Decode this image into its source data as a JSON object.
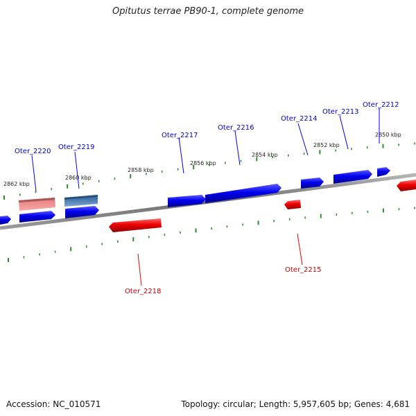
{
  "title": "Opitutus terrae PB90-1, complete genome",
  "footer": {
    "accession": "Accession: NC_010571",
    "summary": "Topology: circular; Length: 5,957,605 bp; Genes: 4,681"
  },
  "colors": {
    "forward_gene": "#0000ee",
    "reverse_gene": "#ee0000",
    "highlight_pink": "#ee8a8a",
    "highlight_steel": "#4f7fb5",
    "scale_ticks": "#2e8b2e",
    "backbone": "#7a7a7a"
  },
  "scale_labels": [
    {
      "text": "2862 kbp"
    },
    {
      "text": "2860 kbp"
    },
    {
      "text": "2858 kbp"
    },
    {
      "text": "2856 kbp"
    },
    {
      "text": "2854 kbp"
    },
    {
      "text": "2852 kbp"
    },
    {
      "text": "2850 kbp"
    }
  ],
  "genes": [
    {
      "name": "Oter_2220",
      "strand": "forward"
    },
    {
      "name": "Oter_2219",
      "strand": "forward"
    },
    {
      "name": "Oter_2217",
      "strand": "forward"
    },
    {
      "name": "Oter_2216",
      "strand": "forward"
    },
    {
      "name": "Oter_2214",
      "strand": "forward"
    },
    {
      "name": "Oter_2213",
      "strand": "forward"
    },
    {
      "name": "Oter_2212",
      "strand": "forward"
    },
    {
      "name": "Oter_2218",
      "strand": "reverse"
    },
    {
      "name": "Oter_2215",
      "strand": "reverse"
    }
  ]
}
